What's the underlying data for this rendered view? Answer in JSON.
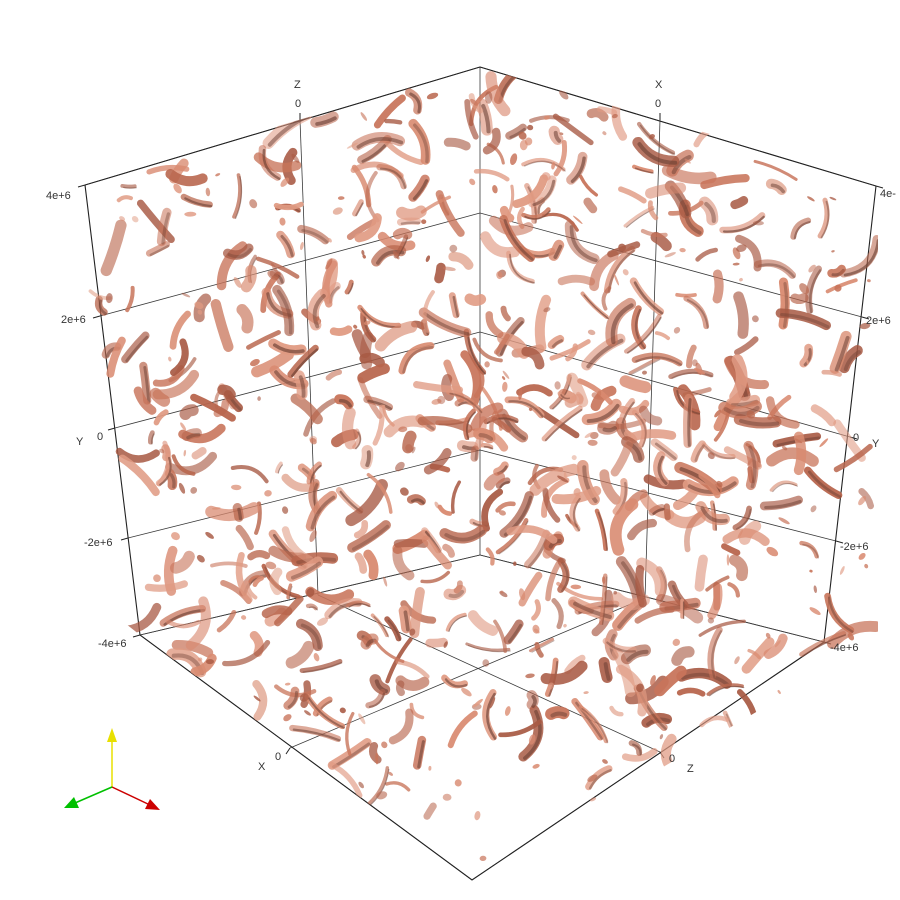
{
  "axes": {
    "z_axis_top_left": {
      "name": "Z",
      "zero_label": "0"
    },
    "x_axis_top_right": {
      "name": "X",
      "zero_label": "0"
    },
    "y_axis_left": {
      "name": "Y",
      "tick_labels": [
        "4e+6",
        "2e+6",
        "0",
        "-2e+6",
        "-4e+6"
      ]
    },
    "y_axis_right": {
      "name": "Y",
      "tick_labels": [
        "4e-",
        "2e+6",
        "0",
        "-2e+6",
        "-4e+6"
      ]
    },
    "x_axis_bottom": {
      "name": "X",
      "zero_label": "0"
    },
    "z_axis_bottom": {
      "name": "Z",
      "zero_label": "0"
    }
  },
  "render": {
    "surface_color": "#c8745a",
    "surface_shadow": "#6b3f33",
    "blob_seed": 7
  },
  "orientation_widget": {
    "x_color": "#cc0000",
    "y_color": "#e8e000",
    "z_color": "#00c000"
  }
}
